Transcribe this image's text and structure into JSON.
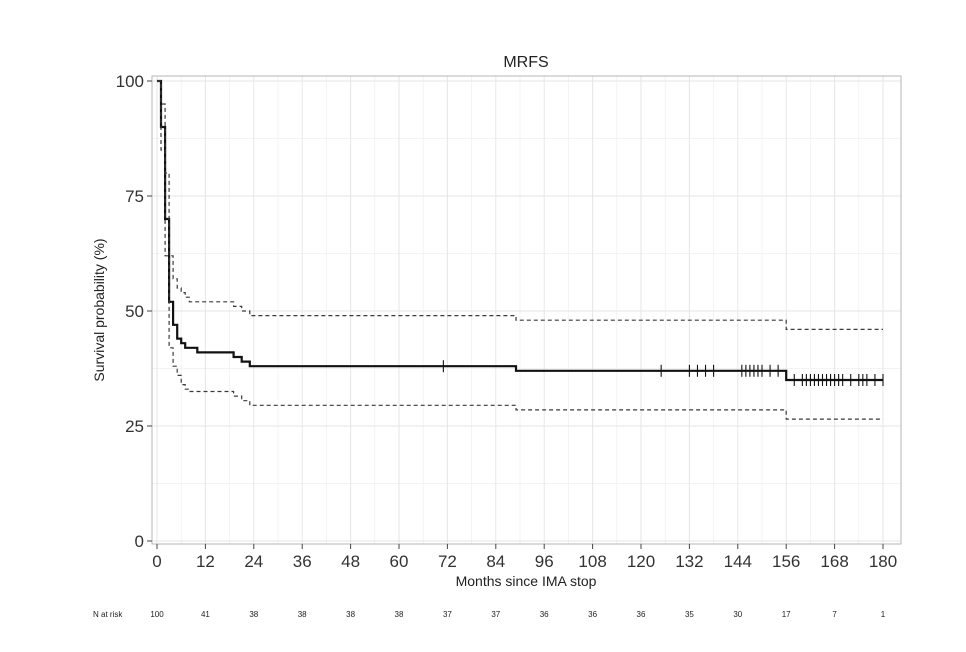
{
  "chart_data": {
    "type": "line",
    "title": "MRFS",
    "xlabel": "Months since IMA stop",
    "ylabel": "Survival probability (%)",
    "xlim": [
      0,
      180
    ],
    "ylim": [
      0,
      100
    ],
    "x_ticks": [
      "0",
      "12",
      "24",
      "36",
      "48",
      "60",
      "72",
      "84",
      "96",
      "108",
      "120",
      "132",
      "144",
      "156",
      "168",
      "180"
    ],
    "y_ticks": [
      "0",
      "25",
      "50",
      "75",
      "100"
    ],
    "grid": true,
    "series": [
      {
        "style": "solid",
        "points": [
          [
            0,
            100
          ],
          [
            1,
            90
          ],
          [
            2,
            70
          ],
          [
            3,
            52
          ],
          [
            4,
            47
          ],
          [
            5,
            44
          ],
          [
            6,
            43
          ],
          [
            7,
            42
          ],
          [
            9,
            42
          ],
          [
            10,
            41
          ],
          [
            17,
            41
          ],
          [
            19,
            40
          ],
          [
            21,
            39
          ],
          [
            23,
            38
          ],
          [
            88,
            38
          ],
          [
            89,
            37
          ],
          [
            155,
            37
          ],
          [
            156,
            35
          ],
          [
            180,
            35
          ]
        ],
        "censor_x": [
          71,
          125,
          132,
          134,
          136,
          138,
          145,
          146,
          147,
          148,
          149,
          150,
          152,
          154,
          158,
          160,
          161,
          162,
          163,
          164,
          165,
          166,
          167,
          168,
          169,
          170,
          172,
          174,
          175,
          176,
          178,
          180
        ]
      },
      {
        "style": "dashed",
        "points": [
          [
            0,
            100
          ],
          [
            1,
            95
          ],
          [
            2,
            80
          ],
          [
            3,
            62
          ],
          [
            4,
            57
          ],
          [
            5,
            55
          ],
          [
            6,
            54
          ],
          [
            7,
            53
          ],
          [
            8,
            52
          ],
          [
            17,
            52
          ],
          [
            19,
            51
          ],
          [
            21,
            50
          ],
          [
            23,
            49
          ],
          [
            88,
            49
          ],
          [
            89,
            48
          ],
          [
            155,
            48
          ],
          [
            156,
            46
          ],
          [
            180,
            46
          ]
        ]
      },
      {
        "style": "dashed",
        "points": [
          [
            0,
            100
          ],
          [
            1,
            85
          ],
          [
            2,
            62
          ],
          [
            3,
            42
          ],
          [
            4,
            38
          ],
          [
            5,
            36
          ],
          [
            6,
            34
          ],
          [
            7,
            33
          ],
          [
            8,
            32.5
          ],
          [
            17,
            32.5
          ],
          [
            19,
            31.5
          ],
          [
            21,
            30.5
          ],
          [
            23,
            29.5
          ],
          [
            88,
            29.5
          ],
          [
            89,
            28.5
          ],
          [
            155,
            28.5
          ],
          [
            156,
            26.5
          ],
          [
            180,
            26.5
          ]
        ]
      }
    ],
    "risk_table": {
      "label": "N at risk",
      "values": [
        "100",
        "41",
        "38",
        "38",
        "38",
        "38",
        "37",
        "37",
        "36",
        "36",
        "36",
        "35",
        "30",
        "17",
        "7",
        "1"
      ]
    }
  }
}
